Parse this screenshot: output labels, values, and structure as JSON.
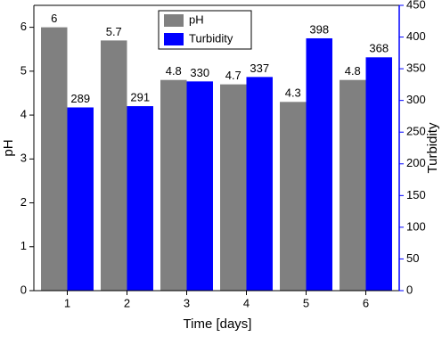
{
  "chart_data": {
    "type": "bar",
    "categories": [
      "1",
      "2",
      "3",
      "4",
      "5",
      "6"
    ],
    "series": [
      {
        "name": "pH",
        "color": "#808080",
        "values": [
          6,
          5.7,
          4.8,
          4.7,
          4.3,
          4.8
        ]
      },
      {
        "name": "Turbidity",
        "color": "#0000ff",
        "axis": "y2",
        "values": [
          289,
          291,
          330,
          337,
          398,
          368
        ]
      }
    ],
    "x_label": "Time [days]",
    "y_label": "pH",
    "y2_label": "Turbidity",
    "ylim": [
      0,
      6.5
    ],
    "yticks": [
      0,
      1,
      2,
      3,
      4,
      5,
      6
    ],
    "y2lim": [
      0,
      450
    ],
    "y2ticks": [
      0,
      50,
      100,
      150,
      200,
      250,
      300,
      350,
      400,
      450
    ],
    "legend": "top"
  }
}
